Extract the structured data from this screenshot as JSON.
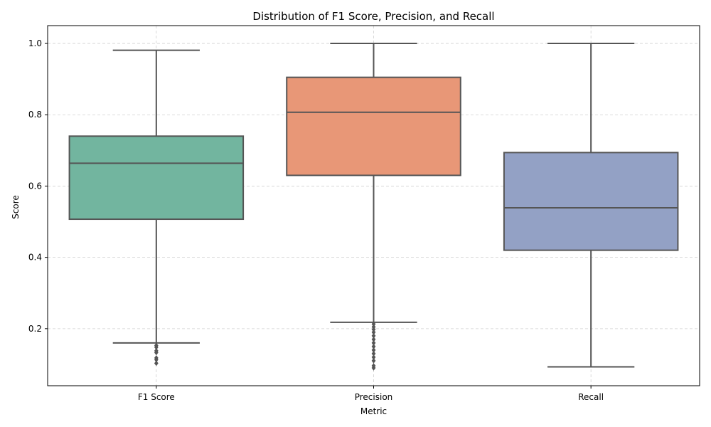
{
  "chart_data": {
    "type": "box",
    "title": "Distribution of F1 Score, Precision, and Recall",
    "xlabel": "Metric",
    "ylabel": "Score",
    "ylim": [
      0.04,
      1.05
    ],
    "yticks": [
      0.2,
      0.4,
      0.6,
      0.8,
      1.0
    ],
    "ytick_labels": [
      "0.2",
      "0.4",
      "0.6",
      "0.8",
      "1.0"
    ],
    "grid": true,
    "categories": [
      "F1 Score",
      "Precision",
      "Recall"
    ],
    "boxes": [
      {
        "category": "F1 Score",
        "color": "#72b59f",
        "whisker_low": 0.16,
        "q1": 0.507,
        "median": 0.664,
        "q3": 0.74,
        "whisker_high": 0.981,
        "outliers": [
          0.153,
          0.148,
          0.138,
          0.133,
          0.118,
          0.113,
          0.103
        ]
      },
      {
        "category": "Precision",
        "color": "#e89777",
        "whisker_low": 0.218,
        "q1": 0.63,
        "median": 0.807,
        "q3": 0.905,
        "whisker_high": 1.0,
        "outliers": [
          0.213,
          0.205,
          0.198,
          0.19,
          0.18,
          0.17,
          0.16,
          0.15,
          0.14,
          0.13,
          0.12,
          0.11,
          0.096,
          0.09
        ]
      },
      {
        "category": "Recall",
        "color": "#93a1c5",
        "whisker_low": 0.093,
        "q1": 0.42,
        "median": 0.539,
        "q3": 0.694,
        "whisker_high": 1.0,
        "outliers": []
      }
    ],
    "style": {
      "line_color": "#555555",
      "grid_color": "#d0d0d0",
      "axis_color": "#000000"
    }
  }
}
